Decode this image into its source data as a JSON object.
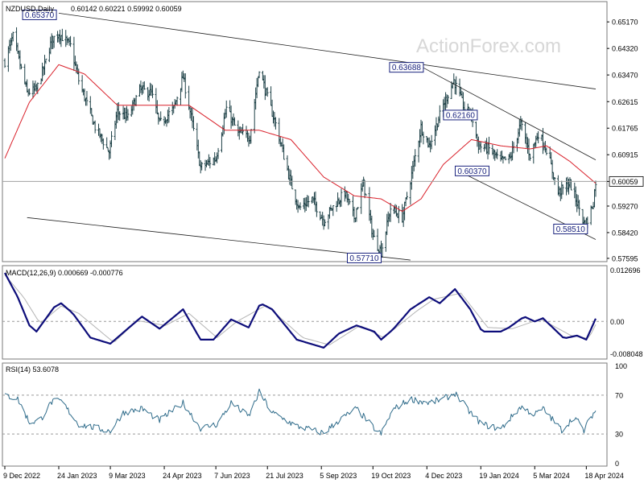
{
  "header": {
    "symbol": "NZDUSD,Daily",
    "ohlc": "0.60142 0.60221 0.59992 0.60059"
  },
  "watermark": "ActionForex.com",
  "colors": {
    "bar": "#1d4046",
    "ma": "#d9202a",
    "macd_line": "#0d0d7a",
    "macd_signal": "#b4b4b4",
    "rsi": "#2e6b8a",
    "trendline": "#222222",
    "label_border": "#1a237e",
    "label_text": "#1a237e",
    "grid": "#9a9a9a"
  },
  "chart_data": [
    {
      "type": "ohlc",
      "panel": "price",
      "title": "NZDUSD,Daily",
      "y_ticks": [
        "0.65170",
        "0.64320",
        "0.63470",
        "0.62615",
        "0.61765",
        "0.60915",
        "0.60059",
        "0.59270",
        "0.58420",
        "0.57595"
      ],
      "ylim": [
        0.5749,
        0.6582
      ],
      "current_price": "0.60059",
      "x_ticks": [
        "9 Dec 2022",
        "24 Jan 2023",
        "9 Mar 2023",
        "24 Apr 2023",
        "7 Jun 2023",
        "21 Jul 2023",
        "5 Sep 2023",
        "19 Oct 2023",
        "4 Dec 2023",
        "19 Jan 2024",
        "5 Mar 2024",
        "18 Apr 2024"
      ],
      "x_range": [
        "2022-12-09",
        "2024-04-26"
      ],
      "close_anchors": [
        [
          "2022-12-09",
          0.639
        ],
        [
          "2022-12-16",
          0.647
        ],
        [
          "2022-12-28",
          0.629
        ],
        [
          "2023-01-05",
          0.63
        ],
        [
          "2023-01-13",
          0.639
        ],
        [
          "2023-01-18",
          0.646
        ],
        [
          "2023-01-24",
          0.648
        ],
        [
          "2023-02-03",
          0.644
        ],
        [
          "2023-02-10",
          0.633
        ],
        [
          "2023-02-24",
          0.618
        ],
        [
          "2023-03-08",
          0.61
        ],
        [
          "2023-03-15",
          0.623
        ],
        [
          "2023-03-24",
          0.621
        ],
        [
          "2023-04-03",
          0.63
        ],
        [
          "2023-04-13",
          0.629
        ],
        [
          "2023-04-20",
          0.619
        ],
        [
          "2023-05-02",
          0.624
        ],
        [
          "2023-05-10",
          0.634
        ],
        [
          "2023-05-15",
          0.625
        ],
        [
          "2023-05-25",
          0.605
        ],
        [
          "2023-06-07",
          0.608
        ],
        [
          "2023-06-16",
          0.624
        ],
        [
          "2023-06-26",
          0.616
        ],
        [
          "2023-07-06",
          0.615
        ],
        [
          "2023-07-14",
          0.637
        ],
        [
          "2023-07-19",
          0.63
        ],
        [
          "2023-07-28",
          0.619
        ],
        [
          "2023-08-10",
          0.6
        ],
        [
          "2023-08-17",
          0.592
        ],
        [
          "2023-08-28",
          0.595
        ],
        [
          "2023-09-07",
          0.588
        ],
        [
          "2023-09-14",
          0.592
        ],
        [
          "2023-09-25",
          0.597
        ],
        [
          "2023-10-03",
          0.589
        ],
        [
          "2023-10-11",
          0.6
        ],
        [
          "2023-10-19",
          0.583
        ],
        [
          "2023-10-26",
          0.578
        ],
        [
          "2023-11-03",
          0.592
        ],
        [
          "2023-11-13",
          0.589
        ],
        [
          "2023-11-20",
          0.601
        ],
        [
          "2023-11-29",
          0.618
        ],
        [
          "2023-12-06",
          0.612
        ],
        [
          "2023-12-18",
          0.625
        ],
        [
          "2023-12-27",
          0.633
        ],
        [
          "2024-01-05",
          0.624
        ],
        [
          "2024-01-11",
          0.622
        ],
        [
          "2024-01-17",
          0.612
        ],
        [
          "2024-01-26",
          0.611
        ],
        [
          "2024-02-05",
          0.607
        ],
        [
          "2024-02-13",
          0.608
        ],
        [
          "2024-02-22",
          0.619
        ],
        [
          "2024-03-01",
          0.609
        ],
        [
          "2024-03-08",
          0.616
        ],
        [
          "2024-03-15",
          0.611
        ],
        [
          "2024-03-25",
          0.597
        ],
        [
          "2024-04-04",
          0.6
        ],
        [
          "2024-04-12",
          0.592
        ],
        [
          "2024-04-16",
          0.587
        ],
        [
          "2024-04-19",
          0.588
        ],
        [
          "2024-04-24",
          0.594
        ],
        [
          "2024-04-26",
          0.6006
        ]
      ],
      "moving_average_anchors": [
        [
          "2022-12-09",
          0.608
        ],
        [
          "2022-12-30",
          0.626
        ],
        [
          "2023-01-24",
          0.638
        ],
        [
          "2023-02-15",
          0.635
        ],
        [
          "2023-03-15",
          0.625
        ],
        [
          "2023-04-20",
          0.625
        ],
        [
          "2023-05-15",
          0.625
        ],
        [
          "2023-06-15",
          0.617
        ],
        [
          "2023-07-14",
          0.617
        ],
        [
          "2023-08-10",
          0.614
        ],
        [
          "2023-09-07",
          0.602
        ],
        [
          "2023-10-03",
          0.596
        ],
        [
          "2023-10-26",
          0.595
        ],
        [
          "2023-11-13",
          0.591
        ],
        [
          "2023-11-29",
          0.595
        ],
        [
          "2023-12-18",
          0.606
        ],
        [
          "2024-01-11",
          0.614
        ],
        [
          "2024-02-05",
          0.612
        ],
        [
          "2024-03-01",
          0.611
        ],
        [
          "2024-03-15",
          0.612
        ],
        [
          "2024-04-04",
          0.607
        ],
        [
          "2024-04-26",
          0.6
        ]
      ],
      "trendlines": [
        {
          "from": [
            "2023-01-24",
            0.6545
          ],
          "to": [
            "2024-04-26",
            0.6302
          ]
        },
        {
          "from": [
            "2022-12-28",
            0.589
          ],
          "to": [
            "2023-11-20",
            0.5754
          ]
        },
        {
          "from": [
            "2023-12-01",
            0.637
          ],
          "to": [
            "2024-04-26",
            0.6075
          ]
        },
        {
          "from": [
            "2024-01-05",
            0.603
          ],
          "to": [
            "2024-04-26",
            0.582
          ]
        }
      ],
      "annotations": [
        {
          "text": "0.65370",
          "date": "2023-01-22",
          "price": 0.6537,
          "side": "left"
        },
        {
          "text": "0.63688",
          "date": "2023-12-01",
          "price": 0.63688,
          "side": "left"
        },
        {
          "text": "0.62160",
          "date": "2024-01-16",
          "price": 0.6216,
          "side": "left"
        },
        {
          "text": "0.60370",
          "date": "2024-01-26",
          "price": 0.6037,
          "side": "left"
        },
        {
          "text": "0.58510",
          "date": "2024-04-19",
          "price": 0.5851,
          "side": "left"
        },
        {
          "text": "0.57710",
          "date": "2023-10-26",
          "price": 0.5771,
          "side": "left"
        }
      ]
    },
    {
      "type": "line",
      "panel": "macd",
      "title": "MACD(12,26,9) 0.000669 -0.000776",
      "y_ticks": [
        "0.012696",
        "0.00",
        "-0.008048"
      ],
      "ylim": [
        -0.0093,
        0.0138
      ],
      "series": [
        {
          "role": "macd",
          "anchors": [
            [
              "2022-12-09",
              0.012
            ],
            [
              "2022-12-20",
              0.006
            ],
            [
              "2022-12-30",
              -0.001
            ],
            [
              "2023-01-05",
              -0.0025
            ],
            [
              "2023-01-20",
              0.0035
            ],
            [
              "2023-01-26",
              0.0045
            ],
            [
              "2023-02-05",
              0.002
            ],
            [
              "2023-02-20",
              -0.004
            ],
            [
              "2023-03-09",
              -0.0055
            ],
            [
              "2023-03-25",
              -0.0015
            ],
            [
              "2023-04-05",
              0.0012
            ],
            [
              "2023-04-20",
              -0.0018
            ],
            [
              "2023-05-10",
              0.003
            ],
            [
              "2023-05-25",
              -0.0045
            ],
            [
              "2023-06-05",
              -0.0045
            ],
            [
              "2023-06-20",
              0.0005
            ],
            [
              "2023-07-05",
              -0.0015
            ],
            [
              "2023-07-15",
              0.0045
            ],
            [
              "2023-07-25",
              0.003
            ],
            [
              "2023-08-15",
              -0.0045
            ],
            [
              "2023-09-07",
              -0.0065
            ],
            [
              "2023-09-20",
              -0.003
            ],
            [
              "2023-10-05",
              -0.001
            ],
            [
              "2023-10-20",
              -0.0025
            ],
            [
              "2023-10-26",
              -0.0045
            ],
            [
              "2023-11-05",
              -0.002
            ],
            [
              "2023-11-20",
              0.003
            ],
            [
              "2023-12-06",
              0.006
            ],
            [
              "2023-12-15",
              0.0045
            ],
            [
              "2023-12-28",
              0.008
            ],
            [
              "2024-01-10",
              0.003
            ],
            [
              "2024-01-20",
              -0.0025
            ],
            [
              "2024-02-05",
              -0.0025
            ],
            [
              "2024-02-12",
              -0.0015
            ],
            [
              "2024-02-25",
              0.0012
            ],
            [
              "2024-03-05",
              0.0
            ],
            [
              "2024-03-12",
              0.0008
            ],
            [
              "2024-03-30",
              -0.0042
            ],
            [
              "2024-04-10",
              -0.0035
            ],
            [
              "2024-04-18",
              -0.0045
            ],
            [
              "2024-04-26",
              0.0007
            ]
          ]
        },
        {
          "role": "signal",
          "anchors": [
            [
              "2022-12-09",
              0.0115
            ],
            [
              "2022-12-25",
              0.006
            ],
            [
              "2023-01-08",
              -0.0005
            ],
            [
              "2023-01-26",
              0.0038
            ],
            [
              "2023-02-10",
              0.002
            ],
            [
              "2023-03-12",
              -0.0052
            ],
            [
              "2023-04-01",
              0.0002
            ],
            [
              "2023-04-25",
              -0.001
            ],
            [
              "2023-05-15",
              0.002
            ],
            [
              "2023-06-08",
              -0.004
            ],
            [
              "2023-06-25",
              0.0
            ],
            [
              "2023-07-20",
              0.004
            ],
            [
              "2023-08-20",
              -0.004
            ],
            [
              "2023-09-12",
              -0.0058
            ],
            [
              "2023-10-08",
              -0.001
            ],
            [
              "2023-10-28",
              -0.004
            ],
            [
              "2023-11-25",
              0.0025
            ],
            [
              "2023-12-10",
              0.0055
            ],
            [
              "2024-01-02",
              0.007
            ],
            [
              "2024-01-25",
              -0.0015
            ],
            [
              "2024-02-15",
              -0.0018
            ],
            [
              "2024-03-10",
              0.0006
            ],
            [
              "2024-04-05",
              -0.0035
            ],
            [
              "2024-04-20",
              -0.0042
            ],
            [
              "2024-04-26",
              -0.0008
            ]
          ]
        }
      ]
    },
    {
      "type": "line",
      "panel": "rsi",
      "title": "RSI(14) 53.6078",
      "y_ticks": [
        "100",
        "70",
        "30",
        "0"
      ],
      "ylim": [
        -3,
        103
      ],
      "levels": [
        70,
        30
      ],
      "series": [
        {
          "role": "rsi",
          "anchors": [
            [
              "2022-12-09",
              70
            ],
            [
              "2022-12-20",
              66
            ],
            [
              "2022-12-30",
              42
            ],
            [
              "2023-01-08",
              44
            ],
            [
              "2023-01-18",
              63
            ],
            [
              "2023-01-26",
              64
            ],
            [
              "2023-02-10",
              40
            ],
            [
              "2023-03-09",
              33
            ],
            [
              "2023-03-20",
              52
            ],
            [
              "2023-04-05",
              56
            ],
            [
              "2023-04-20",
              44
            ],
            [
              "2023-05-10",
              62
            ],
            [
              "2023-05-25",
              36
            ],
            [
              "2023-06-08",
              40
            ],
            [
              "2023-06-20",
              62
            ],
            [
              "2023-07-05",
              48
            ],
            [
              "2023-07-14",
              73
            ],
            [
              "2023-07-25",
              52
            ],
            [
              "2023-08-15",
              38
            ],
            [
              "2023-09-07",
              31
            ],
            [
              "2023-09-20",
              44
            ],
            [
              "2023-10-05",
              56
            ],
            [
              "2023-10-20",
              36
            ],
            [
              "2023-10-26",
              30
            ],
            [
              "2023-11-05",
              55
            ],
            [
              "2023-11-20",
              66
            ],
            [
              "2023-12-06",
              62
            ],
            [
              "2023-12-18",
              66
            ],
            [
              "2023-12-28",
              72
            ],
            [
              "2024-01-10",
              52
            ],
            [
              "2024-01-20",
              40
            ],
            [
              "2024-02-05",
              35
            ],
            [
              "2024-02-22",
              58
            ],
            [
              "2024-03-05",
              50
            ],
            [
              "2024-03-12",
              56
            ],
            [
              "2024-03-28",
              34
            ],
            [
              "2024-04-08",
              48
            ],
            [
              "2024-04-16",
              33
            ],
            [
              "2024-04-22",
              48
            ],
            [
              "2024-04-26",
              54
            ]
          ]
        }
      ]
    }
  ]
}
